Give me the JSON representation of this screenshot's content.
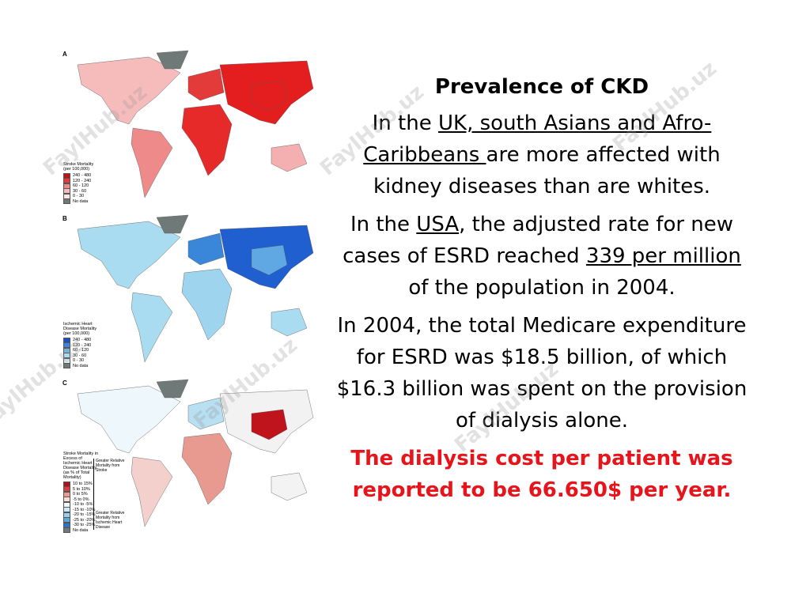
{
  "watermark": "FaylHub.uz",
  "figure": {
    "panels": [
      {
        "label": "A",
        "legend_title": "Stroke Mortality (per 100,000)",
        "legend": [
          "240 - 480",
          "120 - 240",
          "60 - 120",
          "30 - 60",
          "0 - 30",
          "No data"
        ]
      },
      {
        "label": "B",
        "legend_title": "Ischemic Heart Disease Mortality (per 100,000)",
        "legend": [
          "240 - 480",
          "120 - 240",
          "60 - 120",
          "30 - 60",
          "0 - 30",
          "No data"
        ]
      },
      {
        "label": "C",
        "legend_title": "Stroke Mortality in Excess of Ischemic Heart Disease Mortality (as % of Total Mortality)",
        "legend": [
          "10 to 15%",
          "5 to 10%",
          "0 to 5%",
          "-5 to 0%",
          "-10 to -5%",
          "-15 to -10%",
          "-20 to -15%",
          "-25 to -20%",
          "-30 to -25%",
          "No data"
        ],
        "arrow_labels": [
          "Greater Relative Mortality from Stroke",
          "Greater Relative Mortality from Ischemic Heart Disease"
        ]
      }
    ]
  },
  "text": {
    "title": "Prevalence of CKD",
    "paragraphs": [
      [
        {
          "text": "In the "
        },
        {
          "text": "UK, south Asians and Afro-Caribbeans ",
          "underline": true
        },
        {
          "text": "are more affected with kidney diseases than are whites."
        }
      ],
      [
        {
          "text": "In the "
        },
        {
          "text": "USA",
          "underline": true
        },
        {
          "text": ", the adjusted rate for new cases of ESRD reached "
        },
        {
          "text": "339 per million",
          "underline": true
        },
        {
          "text": " of the population in 2004."
        }
      ],
      [
        {
          "text": "In 2004, the total Medicare expenditure for ESRD was $18.5 billion, of which $16.3 billion was spent on the provision of dialysis alone."
        }
      ],
      [
        {
          "text": "The dialysis cost per patient was reported to be 66.650$ per year.",
          "bold": true,
          "color": "#e8141c"
        }
      ]
    ]
  }
}
